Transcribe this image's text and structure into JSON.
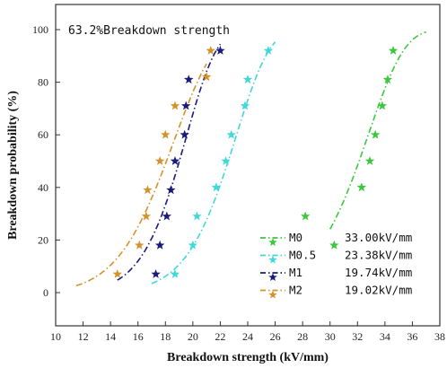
{
  "chart_data": {
    "type": "scatter",
    "title": "",
    "annotation": "63.2%Breakdown strength",
    "xlabel": "Breakdown strength (kV/mm)",
    "ylabel": "Breakdown probability  (%)",
    "xlim": [
      10,
      38
    ],
    "ylim": [
      0,
      100
    ],
    "x_ticks": [
      10,
      12,
      14,
      16,
      18,
      20,
      22,
      24,
      26,
      28,
      30,
      32,
      34,
      36,
      38
    ],
    "y_ticks": [
      0,
      20,
      40,
      60,
      80,
      100
    ],
    "grid": false,
    "legend_position": "bottom-right",
    "series": [
      {
        "name": "M0",
        "value_label": "33.00kV/mm",
        "color": "#3cc83c",
        "fit_range": [
          30.0,
          37.0
        ],
        "scale": 33.0,
        "shape": 13.5,
        "points": [
          [
            28.2,
            29
          ],
          [
            30.3,
            18
          ],
          [
            32.3,
            40
          ],
          [
            32.9,
            50
          ],
          [
            33.3,
            60
          ],
          [
            33.8,
            71
          ],
          [
            34.2,
            81
          ],
          [
            34.6,
            92
          ]
        ]
      },
      {
        "name": "M0.5",
        "value_label": "23.38kV/mm",
        "color": "#40d8d8",
        "fit_range": [
          17.0,
          26.0
        ],
        "scale": 23.38,
        "shape": 10.5,
        "points": [
          [
            18.7,
            7
          ],
          [
            20.0,
            18
          ],
          [
            20.3,
            29
          ],
          [
            21.7,
            40
          ],
          [
            22.4,
            50
          ],
          [
            22.8,
            60
          ],
          [
            23.8,
            71
          ],
          [
            24.0,
            81
          ],
          [
            25.5,
            92
          ]
        ]
      },
      {
        "name": "M1",
        "value_label": "19.74kV/mm",
        "color": "#1a1a7a",
        "fit_range": [
          14.5,
          22.0
        ],
        "scale": 19.74,
        "shape": 9.8,
        "points": [
          [
            17.3,
            7
          ],
          [
            17.6,
            18
          ],
          [
            18.1,
            29
          ],
          [
            18.4,
            39
          ],
          [
            18.7,
            50
          ],
          [
            19.4,
            60
          ],
          [
            19.5,
            71
          ],
          [
            19.7,
            81
          ],
          [
            22.0,
            92
          ]
        ]
      },
      {
        "name": "M2",
        "value_label": "19.02kV/mm",
        "color": "#d4922a",
        "fit_range": [
          11.5,
          21.0
        ],
        "scale": 19.02,
        "shape": 7.2,
        "points": [
          [
            14.5,
            7
          ],
          [
            16.1,
            18
          ],
          [
            16.6,
            29
          ],
          [
            16.7,
            39
          ],
          [
            17.6,
            50
          ],
          [
            18.0,
            60
          ],
          [
            18.7,
            71
          ],
          [
            21.0,
            82
          ],
          [
            21.3,
            92
          ]
        ]
      }
    ]
  }
}
